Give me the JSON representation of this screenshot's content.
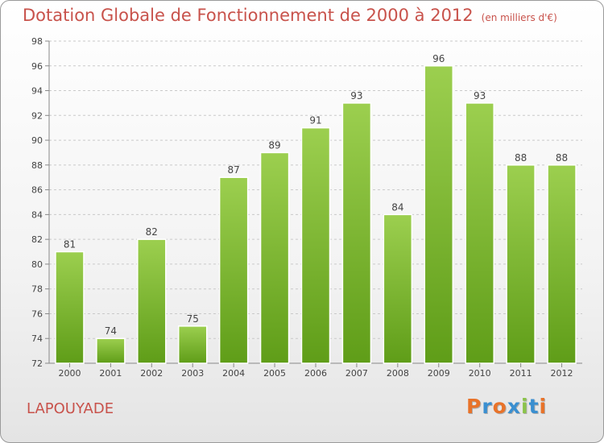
{
  "title": "Dotation Globale de Fonctionnement de 2000 à 2012",
  "unit": "(en milliers d'€)",
  "commune": "LAPOUYADE",
  "logo": {
    "letters": [
      "P",
      "r",
      "o",
      "x",
      "i",
      "t",
      "i"
    ],
    "colors": [
      "#e8732a",
      "#3a8fd0",
      "#e8732a",
      "#3a8fd0",
      "#8bc34a",
      "#3a8fd0",
      "#e8732a"
    ]
  },
  "colors": {
    "title": "#c8524b",
    "bar_top": "#9ccf4f",
    "bar_bottom": "#5f9d18"
  },
  "chart_data": {
    "type": "bar",
    "categories": [
      "2000",
      "2001",
      "2002",
      "2003",
      "2004",
      "2005",
      "2006",
      "2007",
      "2008",
      "2009",
      "2010",
      "2011",
      "2012"
    ],
    "values": [
      81,
      74,
      82,
      75,
      87,
      89,
      91,
      93,
      84,
      96,
      93,
      88,
      88
    ],
    "ylim": [
      72,
      98
    ],
    "yticks": [
      72,
      74,
      76,
      78,
      80,
      82,
      84,
      86,
      88,
      90,
      92,
      94,
      96,
      98
    ],
    "grid": "horizontal dashed",
    "data_labels": true
  }
}
